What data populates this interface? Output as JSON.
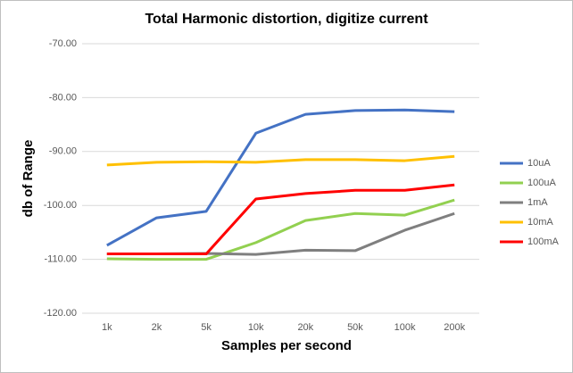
{
  "chart_data": {
    "type": "line",
    "title": "Total Harmonic distortion, digitize current",
    "x_label": "Samples per second",
    "y_label": "db of Range",
    "categories": [
      "1k",
      "2k",
      "5k",
      "10k",
      "20k",
      "50k",
      "100k",
      "200k"
    ],
    "series": [
      {
        "name": "10uA",
        "color": "#4472c4",
        "values": [
          -107.4,
          -102.3,
          -101.1,
          -86.6,
          -83.1,
          -82.4,
          -82.3,
          -82.6
        ]
      },
      {
        "name": "100uA",
        "color": "#92d050",
        "values": [
          -109.9,
          -110,
          -110,
          -106.9,
          -102.8,
          -101.5,
          -101.8,
          -99.0
        ]
      },
      {
        "name": "1mA",
        "color": "#7f7f7f",
        "values": [
          -109,
          -109,
          -108.9,
          -109.1,
          -108.3,
          -108.4,
          -104.6,
          -101.5
        ]
      },
      {
        "name": "10mA",
        "color": "#ffc000",
        "values": [
          -92.5,
          -92.0,
          -91.9,
          -92.0,
          -91.5,
          -91.5,
          -91.7,
          -90.9
        ]
      },
      {
        "name": "100mA",
        "color": "#ff0000",
        "values": [
          -109.0,
          -109.0,
          -109.0,
          -98.8,
          -97.8,
          -97.2,
          -97.2,
          -96.2
        ]
      }
    ],
    "ylim": [
      -120,
      -70
    ],
    "yticks": [
      {
        "value": -120,
        "label": "-120.00"
      },
      {
        "value": -110,
        "label": "-110.00"
      },
      {
        "value": -100,
        "label": "-100.00"
      },
      {
        "value": -90,
        "label": "-90.00"
      },
      {
        "value": -80,
        "label": "-80.00"
      },
      {
        "value": -70,
        "label": "-70.00"
      }
    ],
    "grid": true,
    "legend": "right"
  }
}
